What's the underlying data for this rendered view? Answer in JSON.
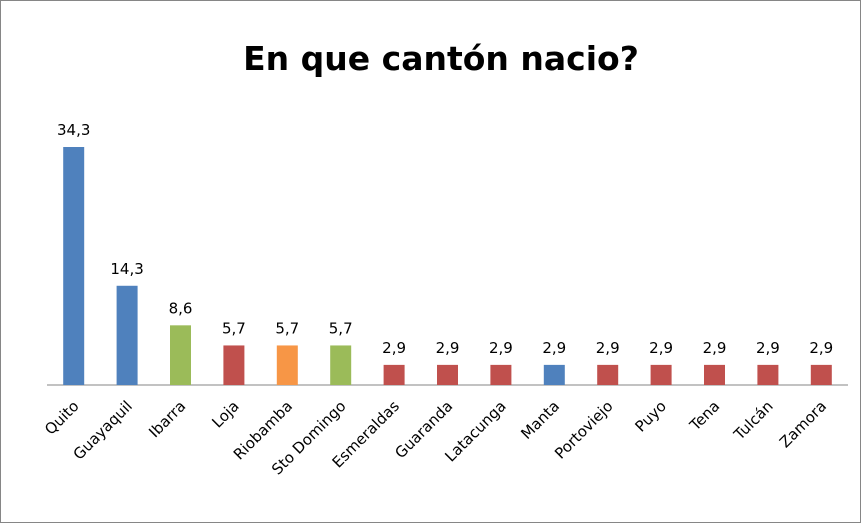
{
  "chart_data": {
    "type": "bar",
    "title": "En que cantón nacio?",
    "categories": [
      "Quito",
      "Guayaquil",
      "Ibarra",
      "Loja",
      "Riobamba",
      "Sto Domingo",
      "Esmeraldas",
      "Guaranda",
      "Latacunga",
      "Manta",
      "Portoviejo",
      "Puyo",
      "Tena",
      "Tulcán",
      "Zamora"
    ],
    "values": [
      34.3,
      14.3,
      8.6,
      5.7,
      5.7,
      5.7,
      2.9,
      2.9,
      2.9,
      2.9,
      2.9,
      2.9,
      2.9,
      2.9,
      2.9
    ],
    "value_labels": [
      "34,3",
      "14,3",
      "8,6",
      "5,7",
      "5,7",
      "5,7",
      "2,9",
      "2,9",
      "2,9",
      "2,9",
      "2,9",
      "2,9",
      "2,9",
      "2,9",
      "2,9"
    ],
    "colors": [
      "#4f81bd",
      "#4f81bd",
      "#9bbb59",
      "#c0504d",
      "#f79646",
      "#9bbb59",
      "#c0504d",
      "#c0504d",
      "#c0504d",
      "#4f81bd",
      "#c0504d",
      "#c0504d",
      "#c0504d",
      "#c0504d",
      "#c0504d"
    ]
  }
}
